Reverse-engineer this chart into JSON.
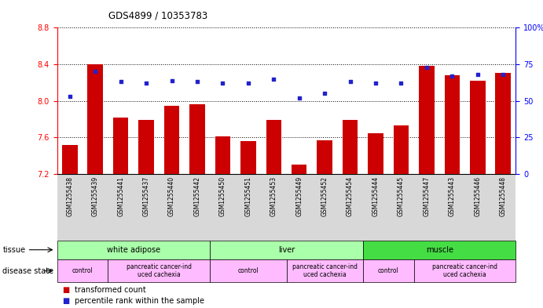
{
  "title": "GDS4899 / 10353783",
  "samples": [
    "GSM1255438",
    "GSM1255439",
    "GSM1255441",
    "GSM1255437",
    "GSM1255440",
    "GSM1255442",
    "GSM1255450",
    "GSM1255451",
    "GSM1255453",
    "GSM1255449",
    "GSM1255452",
    "GSM1255454",
    "GSM1255444",
    "GSM1255445",
    "GSM1255447",
    "GSM1255443",
    "GSM1255446",
    "GSM1255448"
  ],
  "transformed_count": [
    7.52,
    8.4,
    7.82,
    7.79,
    7.95,
    7.96,
    7.61,
    7.56,
    7.79,
    7.3,
    7.57,
    7.79,
    7.65,
    7.73,
    8.38,
    8.28,
    8.22,
    8.31
  ],
  "percentile_rank": [
    53,
    70,
    63,
    62,
    64,
    63,
    62,
    62,
    65,
    52,
    55,
    63,
    62,
    62,
    73,
    67,
    68,
    68
  ],
  "ylim_left": [
    7.2,
    8.8
  ],
  "ylim_right": [
    0,
    100
  ],
  "yticks_left": [
    7.2,
    7.6,
    8.0,
    8.4,
    8.8
  ],
  "yticks_right": [
    0,
    25,
    50,
    75,
    100
  ],
  "ytick_labels_right": [
    "0",
    "25",
    "50",
    "75",
    "100%"
  ],
  "bar_color": "#cc0000",
  "dot_color": "#2222cc",
  "bar_width": 0.6,
  "tissue_groups": [
    {
      "label": "white adipose",
      "start": 0,
      "end": 6,
      "color": "#aaffaa"
    },
    {
      "label": "liver",
      "start": 6,
      "end": 12,
      "color": "#aaffaa"
    },
    {
      "label": "muscle",
      "start": 12,
      "end": 18,
      "color": "#44dd44"
    }
  ],
  "disease_groups": [
    {
      "label": "control",
      "start": 0,
      "end": 2,
      "color": "#ffbbff"
    },
    {
      "label": "pancreatic cancer-ind\nuced cachexia",
      "start": 2,
      "end": 6,
      "color": "#ffbbff"
    },
    {
      "label": "control",
      "start": 6,
      "end": 9,
      "color": "#ffbbff"
    },
    {
      "label": "pancreatic cancer-ind\nuced cachexia",
      "start": 9,
      "end": 12,
      "color": "#ffbbff"
    },
    {
      "label": "control",
      "start": 12,
      "end": 14,
      "color": "#ffbbff"
    },
    {
      "label": "pancreatic cancer-ind\nuced cachexia",
      "start": 14,
      "end": 18,
      "color": "#ffbbff"
    }
  ]
}
